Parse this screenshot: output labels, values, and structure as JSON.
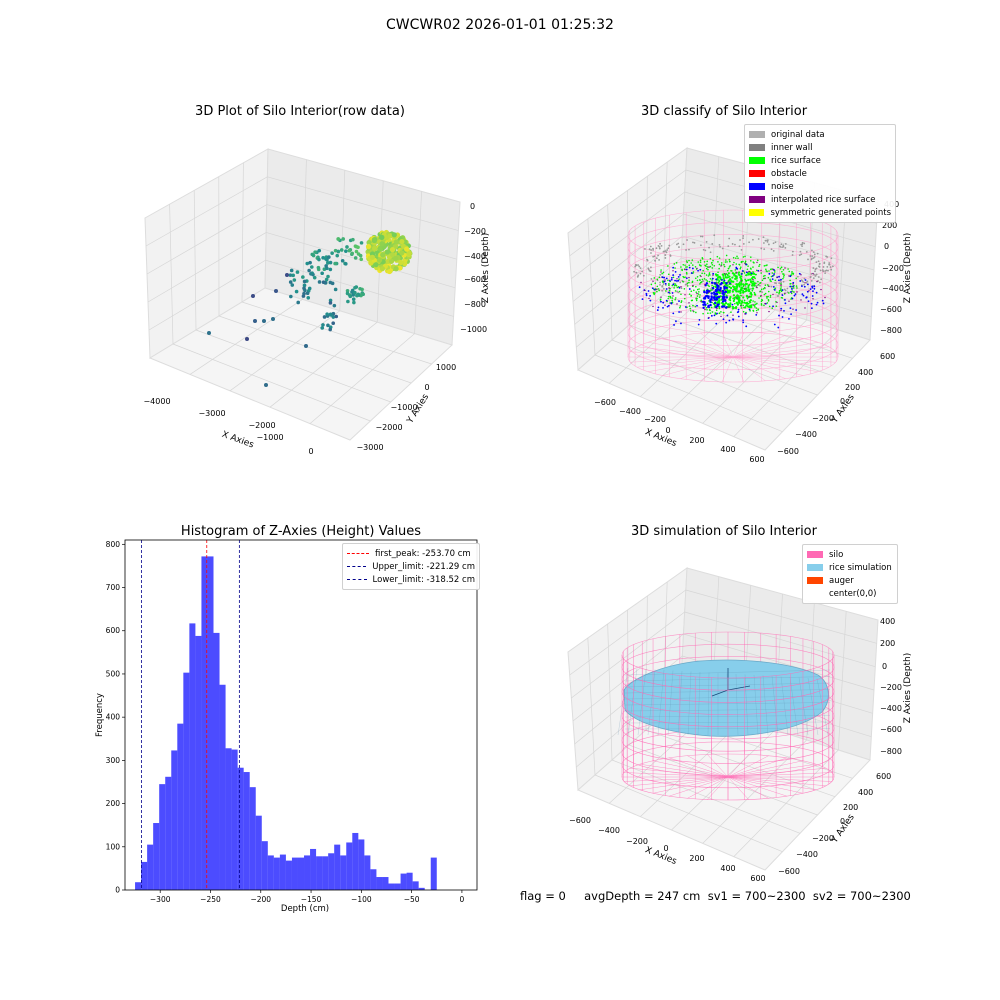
{
  "suptitle": "CWCWR02 2026-01-01 01:25:32",
  "panels": {
    "raw": {
      "title": "3D Plot of Silo Interior(row data)",
      "xlabel": "X Axies",
      "ylabel": "Y Axies",
      "zlabel": "Z Axies (Depth)",
      "xticks": [
        "−4000",
        "−3000",
        "−2000",
        "−1000",
        "0"
      ],
      "yticks": [
        "1000",
        "0",
        "−1000",
        "−2000",
        "−3000"
      ],
      "zticks": [
        "0",
        "−200",
        "−400",
        "−600",
        "−800",
        "−1000"
      ]
    },
    "classify": {
      "title": "3D classify of Silo Interior",
      "xlabel": "X Axies",
      "ylabel": "Y Axies",
      "zlabel": "Z Axies (Depth)",
      "xticks": [
        "−600",
        "−400",
        "−200",
        "0",
        "200",
        "400",
        "600"
      ],
      "yticks": [
        "600",
        "400",
        "200",
        "0",
        "−200",
        "−400",
        "−600"
      ],
      "zticks": [
        "200",
        "0",
        "−200",
        "−400",
        "−600",
        "−800"
      ],
      "ztop_tick": "400",
      "legend": [
        {
          "label": "original data",
          "color": "#b0b0b0"
        },
        {
          "label": "inner wall",
          "color": "#808080"
        },
        {
          "label": "rice surface",
          "color": "#00ff00"
        },
        {
          "label": "obstacle",
          "color": "#ff0000"
        },
        {
          "label": "noise",
          "color": "#0000ff"
        },
        {
          "label": "interpolated rice surface",
          "color": "#800080"
        },
        {
          "label": "symmetric generated points",
          "color": "#ffff00"
        }
      ]
    },
    "simulation": {
      "title": "3D simulation of Silo Interior",
      "xlabel": "X Axies",
      "ylabel": "Y Axies",
      "zlabel": "Z Axies (Depth)",
      "xticks": [
        "−600",
        "−400",
        "−200",
        "0",
        "200",
        "400",
        "600"
      ],
      "yticks": [
        "600",
        "400",
        "200",
        "0",
        "−200",
        "−400",
        "−600"
      ],
      "zticks": [
        "400",
        "200",
        "0",
        "−200",
        "−400",
        "−600",
        "−800"
      ],
      "legend": [
        {
          "label": "silo",
          "color": "#ff69b4"
        },
        {
          "label": "rice simulation",
          "color": "#87ceeb"
        },
        {
          "label": "auger",
          "color": "#ff4500"
        },
        {
          "label": "center(0,0)",
          "color": ""
        }
      ]
    }
  },
  "footer": "flag = 0     avgDepth = 247 cm  sv1 = 700~2300  sv2 = 700~2300",
  "chart_data": {
    "type": "bar",
    "title": "Histogram of Z-Axies (Height) Values",
    "xlabel": "Depth (cm)",
    "ylabel": "Frequency",
    "xlim": [
      -335,
      15
    ],
    "ylim": [
      0,
      810
    ],
    "xticks": [
      -300,
      -250,
      -200,
      -150,
      -100,
      -50,
      0
    ],
    "yticks": [
      0,
      100,
      200,
      300,
      400,
      500,
      600,
      700,
      800
    ],
    "bar_color": "#0000ff",
    "bin_edges_start": -325,
    "bin_width": 6,
    "values": [
      18,
      65,
      105,
      155,
      245,
      262,
      323,
      385,
      503,
      617,
      588,
      772,
      772,
      595,
      475,
      328,
      325,
      283,
      273,
      238,
      172,
      113,
      80,
      75,
      82,
      68,
      75,
      75,
      80,
      95,
      78,
      78,
      85,
      105,
      80,
      110,
      132,
      117,
      80,
      48,
      30,
      30,
      15,
      15,
      38,
      40,
      20,
      5,
      0,
      75
    ],
    "lines": [
      {
        "label": "first_peak: -253.70 cm",
        "x": -253.7,
        "color": "#ff0000"
      },
      {
        "label": "Upper_limit: -221.29 cm",
        "x": -221.29,
        "color": "#00008b"
      },
      {
        "label": "Lower_limit: -318.52 cm",
        "x": -318.52,
        "color": "#00008b"
      }
    ]
  }
}
